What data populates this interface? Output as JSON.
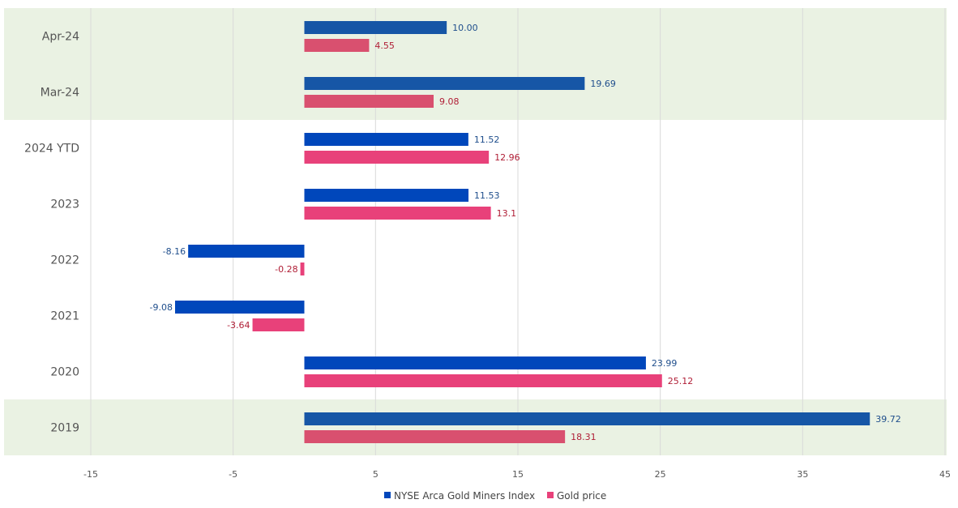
{
  "chart_data": {
    "type": "bar",
    "orientation": "horizontal",
    "categories": [
      "Apr-24",
      "Mar-24",
      "2024 YTD",
      "2023",
      "2022",
      "2021",
      "2020",
      "2019"
    ],
    "highlighted_categories": [
      "Apr-24",
      "Mar-24",
      "2019"
    ],
    "series": [
      {
        "name": "NYSE Arca Gold Miners Index",
        "values": [
          10.0,
          19.69,
          11.52,
          11.53,
          -8.16,
          -9.08,
          23.99,
          39.72
        ],
        "labels": [
          "10.00",
          "19.69",
          "11.52",
          "11.53",
          "-8.16",
          "-9.08",
          "23.99",
          "39.72"
        ],
        "color": "#0047BB",
        "color_highlighted": "#1656A6",
        "label_color": "#1F4E8C"
      },
      {
        "name": "Gold price",
        "values": [
          4.55,
          9.08,
          12.96,
          13.1,
          -0.28,
          -3.64,
          25.12,
          18.31
        ],
        "labels": [
          "4.55",
          "9.08",
          "12.96",
          "13.1",
          "-0.28",
          "-3.64",
          "25.12",
          "18.31"
        ],
        "color": "#E8417A",
        "color_highlighted": "#D9506F",
        "label_color": "#B01E36"
      }
    ],
    "xlim": [
      -15,
      45
    ],
    "xticks": [
      -15,
      -5,
      5,
      15,
      25,
      35,
      45
    ],
    "grid": true,
    "legend_position": "bottom-center",
    "highlight_color": "#EAF2E3",
    "title": "",
    "xlabel": "",
    "ylabel": ""
  }
}
